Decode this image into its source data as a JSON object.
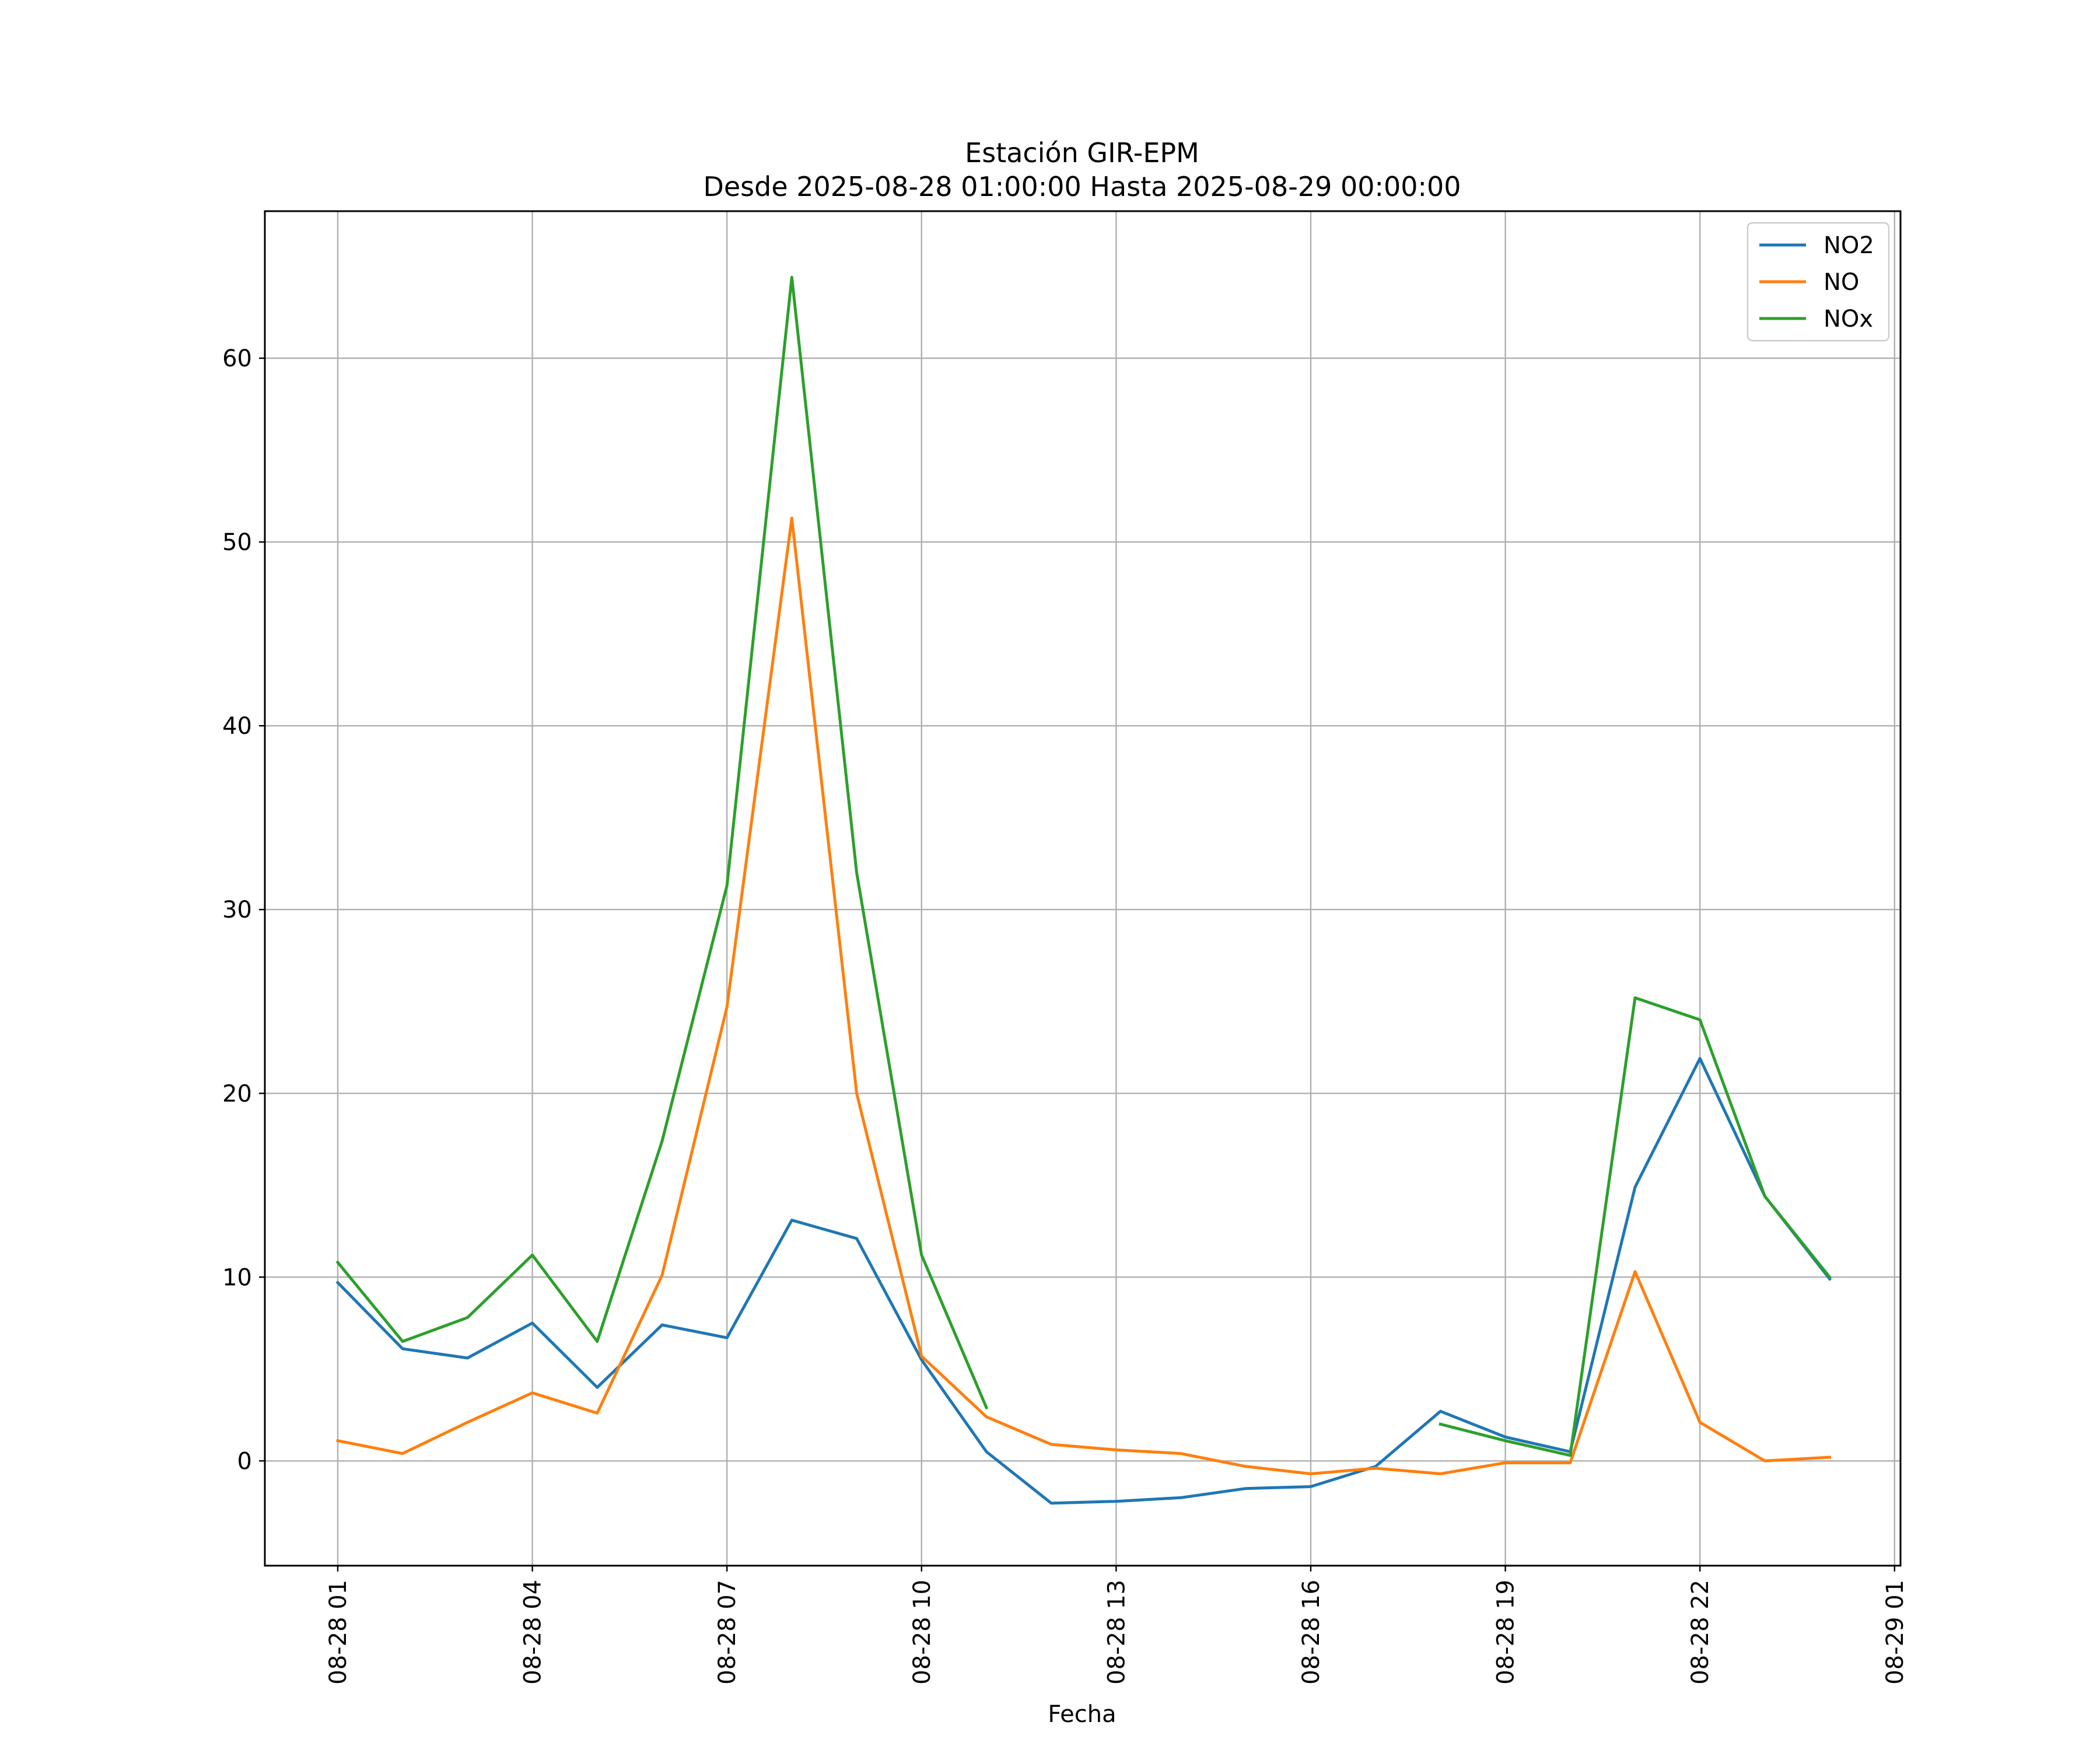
{
  "chart_data": {
    "type": "line",
    "title": "Estación GIR-EPM",
    "subtitle": "Desde 2025-08-28 01:00:00 Hasta 2025-08-29 00:00:00",
    "xlabel": "Fecha",
    "ylabel": "",
    "grid": true,
    "legend_position": "top-right",
    "x_unit": "hour",
    "x": [
      "08-28 01",
      "08-28 02",
      "08-28 03",
      "08-28 04",
      "08-28 05",
      "08-28 06",
      "08-28 07",
      "08-28 08",
      "08-28 09",
      "08-28 10",
      "08-28 11",
      "08-28 12",
      "08-28 13",
      "08-28 14",
      "08-28 15",
      "08-28 16",
      "08-28 17",
      "08-28 18",
      "08-28 19",
      "08-28 20",
      "08-28 21",
      "08-28 22",
      "08-28 23",
      "08-29 00"
    ],
    "x_ticks": [
      "08-28 01",
      "08-28 04",
      "08-28 07",
      "08-28 10",
      "08-28 13",
      "08-28 16",
      "08-28 19",
      "08-28 22",
      "08-29 01"
    ],
    "ylim": [
      -5.7,
      68.0
    ],
    "y_ticks": [
      0,
      10,
      20,
      30,
      40,
      50,
      60
    ],
    "series": [
      {
        "name": "NO2",
        "color": "#1f77b4",
        "values": [
          9.7,
          6.1,
          5.6,
          7.5,
          4.0,
          7.4,
          6.7,
          13.1,
          12.1,
          5.5,
          0.5,
          -2.3,
          -2.2,
          -2.0,
          -1.5,
          -1.4,
          -0.3,
          2.7,
          1.3,
          0.5,
          14.9,
          21.9,
          14.4,
          9.9
        ]
      },
      {
        "name": "NO",
        "color": "#ff7f0e",
        "values": [
          1.1,
          0.4,
          2.1,
          3.7,
          2.6,
          10.1,
          24.7,
          51.3,
          20.0,
          5.7,
          2.4,
          0.9,
          0.6,
          0.4,
          -0.3,
          -0.7,
          -0.4,
          -0.7,
          -0.1,
          -0.1,
          10.3,
          2.1,
          0.0,
          0.2
        ]
      },
      {
        "name": "NOx",
        "color": "#2ca02c",
        "values": [
          10.8,
          6.5,
          7.8,
          11.2,
          6.5,
          17.4,
          31.3,
          64.4,
          32.0,
          11.2,
          2.9,
          null,
          null,
          null,
          null,
          null,
          null,
          2.0,
          1.1,
          0.3,
          25.2,
          24.0,
          14.4,
          10.0
        ]
      }
    ]
  }
}
